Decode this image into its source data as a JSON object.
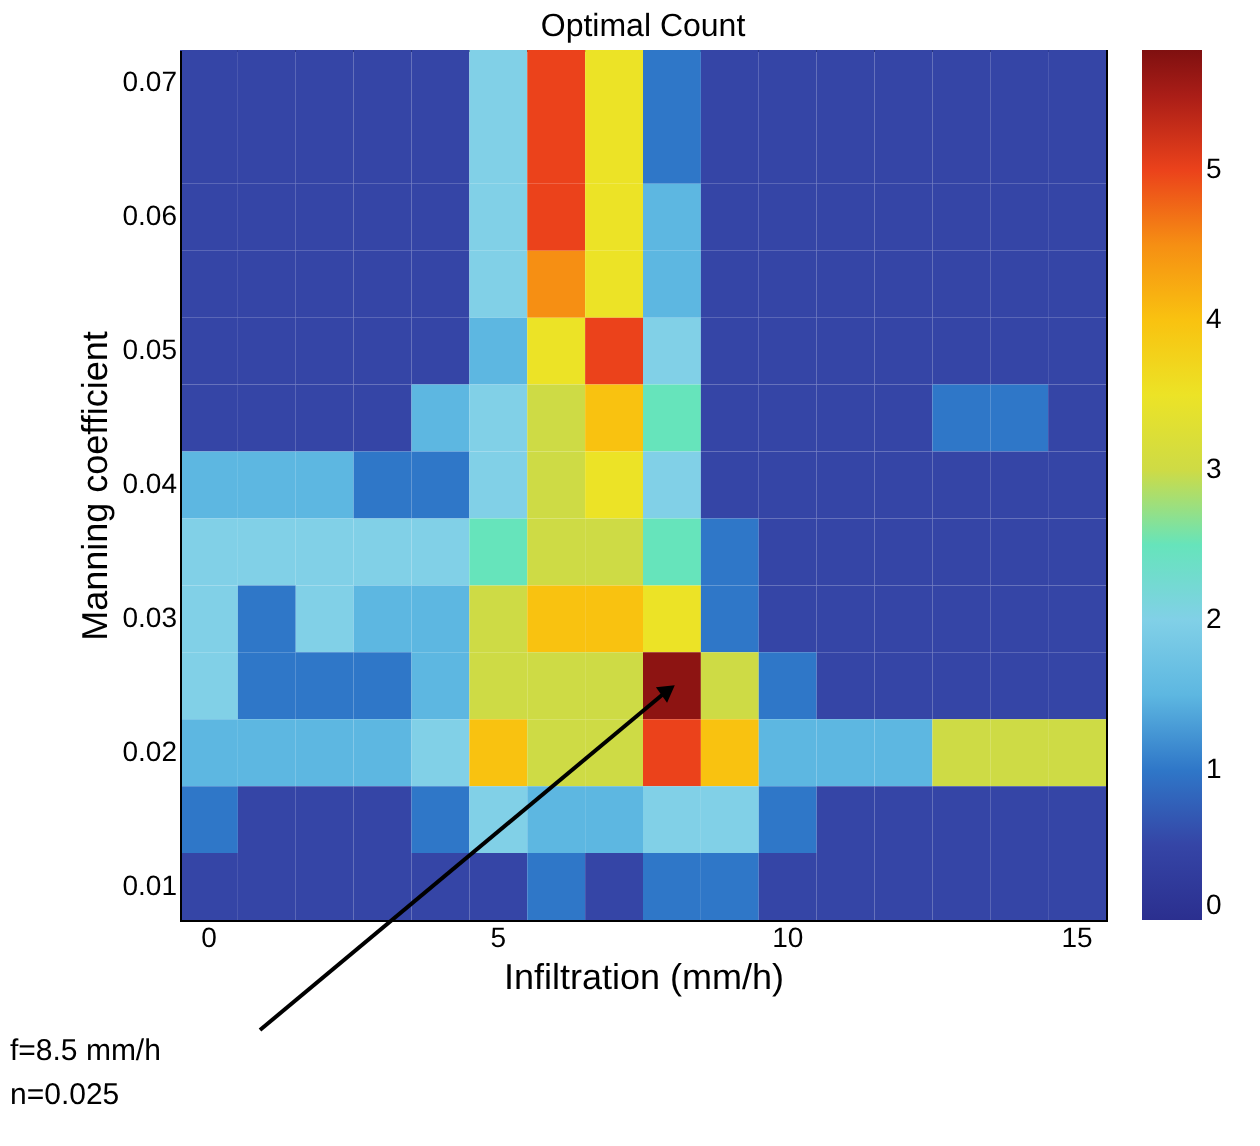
{
  "chart_data": {
    "type": "heatmap",
    "title": "Optimal Count",
    "xlabel": "Infiltration (mm/h)",
    "ylabel": "Manning coefficient",
    "categories": [
      "0",
      null,
      null,
      null,
      null,
      "5",
      null,
      null,
      null,
      null,
      "10",
      null,
      null,
      null,
      null,
      "15"
    ],
    "y_categories": [
      "0.07",
      null,
      "0.06",
      null,
      "0.05",
      null,
      "0.04",
      null,
      "0.03",
      null,
      "0.02",
      null,
      "0.01"
    ],
    "cells": [
      [
        0.5,
        0.5,
        0.5,
        0.5,
        0.5,
        2,
        5,
        3.5,
        1,
        0.5,
        0.5,
        0.5,
        0.5,
        0.5,
        0.5,
        0.5
      ],
      [
        0.5,
        0.5,
        0.5,
        0.5,
        0.5,
        2,
        5,
        3.5,
        1,
        0.5,
        0.5,
        0.5,
        0.5,
        0.5,
        0.5,
        0.5
      ],
      [
        0.5,
        0.5,
        0.5,
        0.5,
        0.5,
        2,
        5,
        3.5,
        1.5,
        0.5,
        0.5,
        0.5,
        0.5,
        0.5,
        0.5,
        0.5
      ],
      [
        0.5,
        0.5,
        0.5,
        0.5,
        0.5,
        2,
        4.5,
        3.5,
        1.5,
        0.5,
        0.5,
        0.5,
        0.5,
        0.5,
        0.5,
        0.5
      ],
      [
        0.5,
        0.5,
        0.5,
        0.5,
        0.5,
        1.5,
        3.5,
        5,
        2,
        0.5,
        0.5,
        0.5,
        0.5,
        0.5,
        0.5,
        0.5
      ],
      [
        0.5,
        0.5,
        0.5,
        0.5,
        1.5,
        2,
        3,
        4,
        2.5,
        0.5,
        0.5,
        0.5,
        0.5,
        1,
        1,
        0.5
      ],
      [
        1.5,
        1.5,
        1.5,
        1,
        1,
        2,
        3,
        3.5,
        2,
        0.5,
        0.5,
        0.5,
        0.5,
        0.5,
        0.5,
        0.5
      ],
      [
        2,
        2,
        2,
        2,
        2,
        2.5,
        3,
        3,
        2.5,
        1,
        0.5,
        0.5,
        0.5,
        0.5,
        0.5,
        0.5
      ],
      [
        2,
        1,
        2,
        1.5,
        1.5,
        3,
        4,
        4,
        3.5,
        1,
        0.5,
        0.5,
        0.5,
        0.5,
        0.5,
        0.5
      ],
      [
        2,
        1,
        1,
        1,
        1.5,
        3,
        3,
        3,
        5.7,
        3,
        1,
        0.5,
        0.5,
        0.5,
        0.5,
        0.5
      ],
      [
        1.5,
        1.5,
        1.5,
        1.5,
        2,
        4,
        3,
        3,
        5,
        4,
        1.5,
        1.5,
        1.5,
        3,
        3,
        3
      ],
      [
        1,
        0.5,
        0.5,
        0.5,
        1,
        2,
        1.5,
        1.5,
        2,
        2,
        1,
        0.5,
        0.5,
        0.5,
        0.5,
        0.5
      ],
      [
        0.5,
        0.5,
        0.5,
        0.5,
        0.5,
        0.5,
        1,
        0.5,
        1,
        1,
        0.5,
        0.5,
        0.5,
        0.5,
        0.5,
        0.5
      ]
    ],
    "clim": [
      0,
      5.8
    ],
    "cticks": [
      0,
      1,
      2,
      3,
      4,
      5
    ],
    "annotations": [
      "f=8.5 mm/h\nn=0.025"
    ]
  }
}
